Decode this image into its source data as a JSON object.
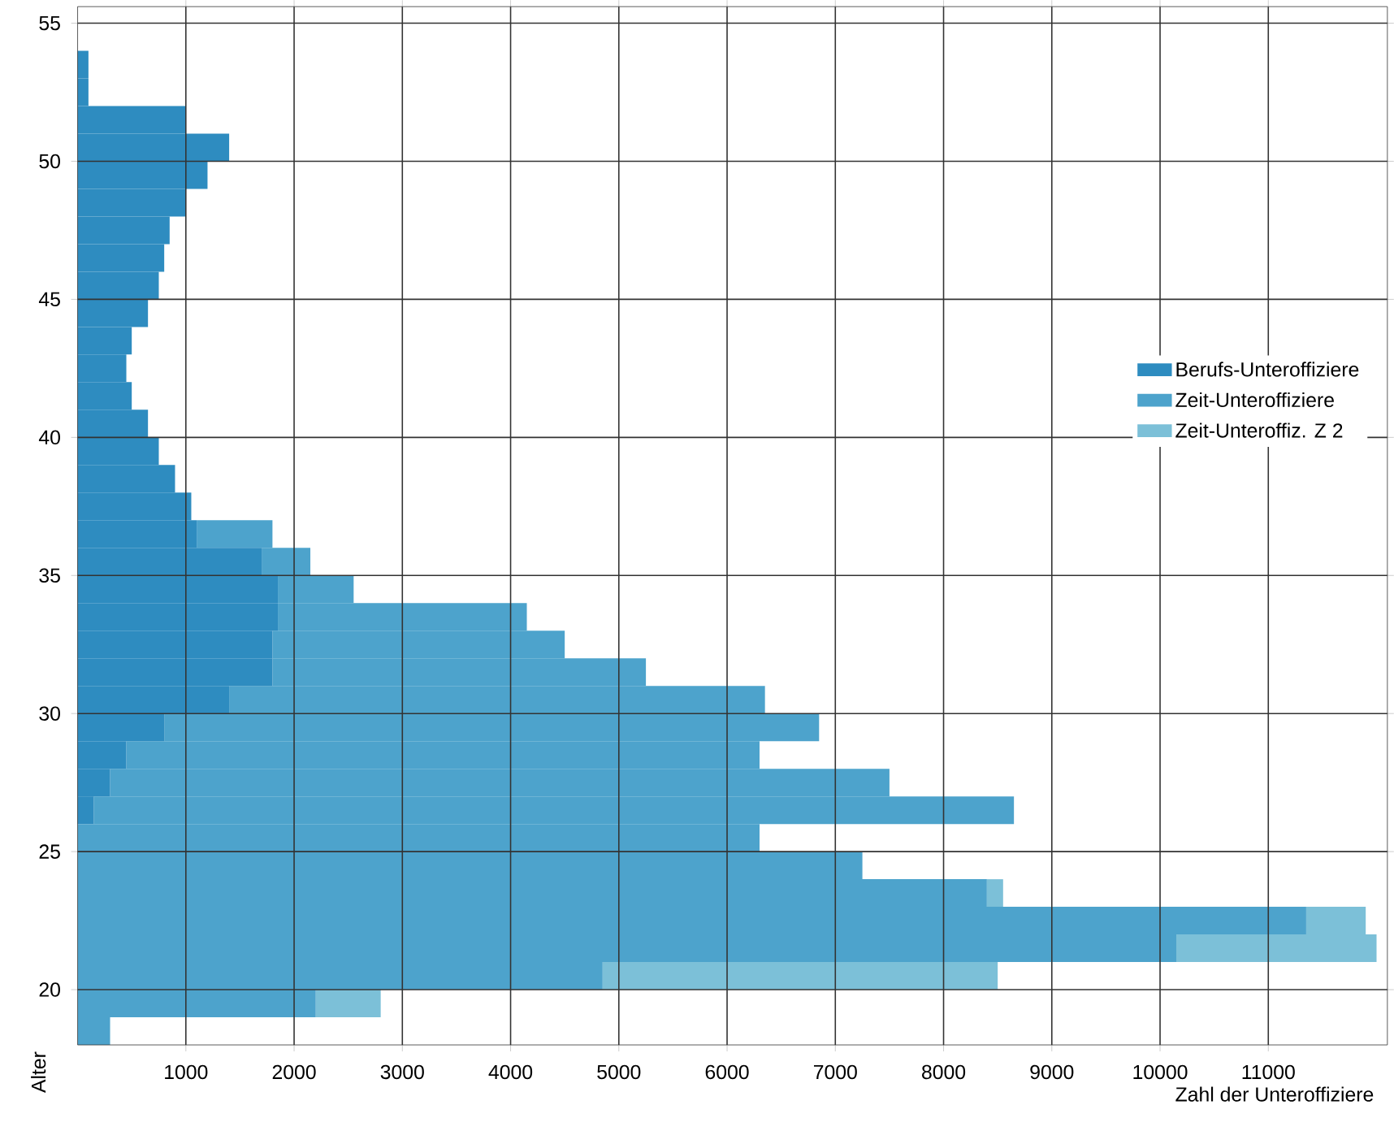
{
  "chart_data": {
    "type": "bar",
    "orientation": "horizontal",
    "stacked": true,
    "xlabel": "Zahl der Unteroffiziere",
    "ylabel": "Alter",
    "x": [
      18.5,
      19.5,
      20.5,
      21.5,
      22.5,
      23.5,
      24.5,
      25.5,
      26.5,
      27.5,
      28.5,
      29.5,
      30.5,
      31.5,
      32.5,
      33.5,
      34.5,
      35.5,
      36.5,
      37.5,
      38.5,
      39.5,
      40.5,
      41.5,
      42.5,
      43.5,
      44.5,
      45.5,
      46.5,
      47.5,
      48.5,
      49.5,
      50.5,
      51.5,
      52.5,
      53.5
    ],
    "series": [
      {
        "name": "Berufs-Unteroffiziere",
        "color": "#2e8cc0",
        "values": [
          0,
          0,
          0,
          0,
          0,
          0,
          0,
          0,
          150,
          300,
          450,
          800,
          1400,
          1800,
          1800,
          1850,
          1850,
          1700,
          1100,
          1050,
          900,
          750,
          650,
          500,
          450,
          500,
          650,
          750,
          800,
          850,
          1000,
          1200,
          1400,
          1000,
          100,
          100
        ]
      },
      {
        "name": "Zeit-Unteroffiziere",
        "color": "#4da3cc",
        "values": [
          300,
          2200,
          4850,
          10150,
          11350,
          8400,
          7250,
          6300,
          8500,
          7200,
          5850,
          6050,
          4950,
          3450,
          2700,
          2300,
          700,
          450,
          700,
          0,
          0,
          0,
          0,
          0,
          0,
          0,
          0,
          0,
          0,
          0,
          0,
          0,
          0,
          0,
          0,
          0
        ]
      },
      {
        "name": "Zeit-Unteroffiz. Z 2",
        "color": "#7cc0d8",
        "values": [
          0,
          600,
          3650,
          1850,
          550,
          150,
          0,
          0,
          0,
          0,
          0,
          0,
          0,
          0,
          0,
          0,
          0,
          0,
          0,
          0,
          0,
          0,
          0,
          0,
          0,
          0,
          0,
          0,
          0,
          0,
          0,
          0,
          0,
          0,
          0,
          0
        ]
      }
    ],
    "xlim": [
      0,
      12100
    ],
    "xticks": [
      1000,
      2000,
      3000,
      4000,
      5000,
      6000,
      7000,
      8000,
      9000,
      10000,
      11000
    ],
    "ylim": [
      18,
      55.6
    ],
    "yticks": [
      20,
      25,
      30,
      35,
      40,
      45,
      50,
      55
    ],
    "grid": true,
    "legend": "right"
  }
}
